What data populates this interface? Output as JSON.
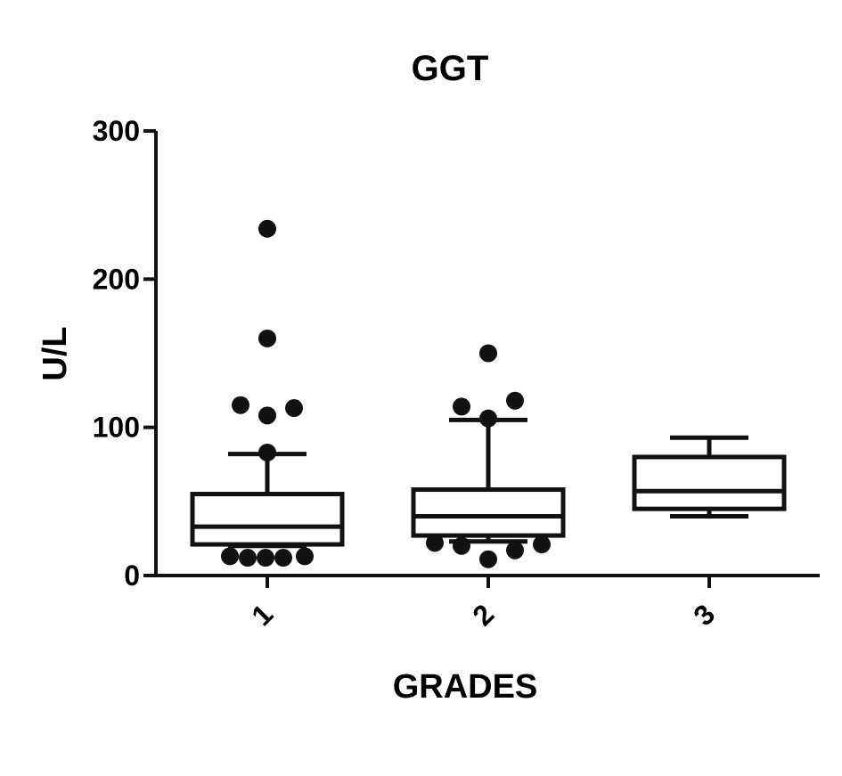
{
  "chart_data": {
    "type": "box",
    "title": "GGT",
    "xlabel": "GRADES",
    "ylabel": "U/L",
    "ylim": [
      0,
      300
    ],
    "yticks": [
      "0",
      "100",
      "200",
      "300"
    ],
    "grid": false,
    "legend": "none",
    "categories": [
      "1",
      "2",
      "3"
    ],
    "boxes": [
      {
        "category": "1",
        "whisker_low": 20,
        "q1": 21,
        "median": 33,
        "q3": 55,
        "whisker_high": 82,
        "outliers": [
          234,
          160,
          115,
          108,
          113,
          83,
          13,
          12,
          12,
          12,
          13
        ]
      },
      {
        "category": "2",
        "whisker_low": 23,
        "q1": 27,
        "median": 40,
        "q3": 58,
        "whisker_high": 105,
        "outliers": [
          150,
          114,
          106,
          118,
          22,
          20,
          11,
          17,
          21
        ]
      },
      {
        "category": "3",
        "whisker_low": 40,
        "q1": 45,
        "median": 57,
        "q3": 80,
        "whisker_high": 93,
        "outliers": []
      }
    ]
  }
}
